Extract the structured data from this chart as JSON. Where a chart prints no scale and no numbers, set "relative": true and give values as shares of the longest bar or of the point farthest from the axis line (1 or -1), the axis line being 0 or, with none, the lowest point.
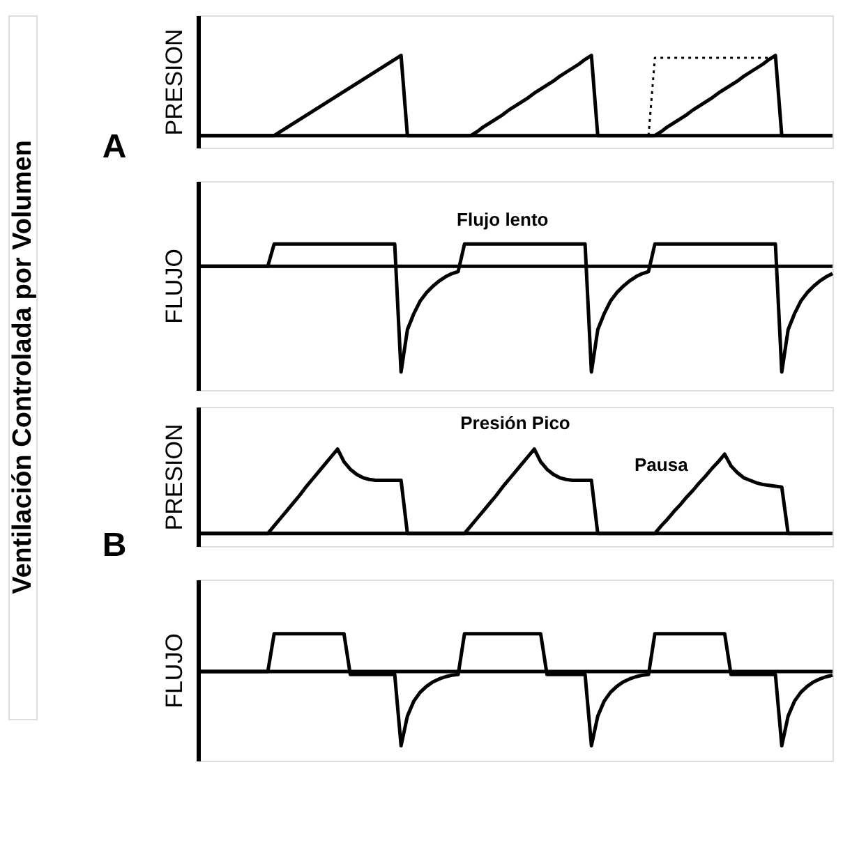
{
  "chart_data": [
    {
      "type": "other",
      "title": "Ventilación Controlada por Volumen"
    },
    {
      "type": "line",
      "ylabel": "PRESION",
      "annotations": [
        "A"
      ],
      "relative": true,
      "categories": [
        null,
        null,
        null,
        null,
        null,
        null,
        null,
        null,
        null,
        null,
        null,
        null,
        null,
        null,
        null,
        null,
        null,
        null,
        null,
        null,
        null,
        null,
        null,
        null,
        null,
        null,
        null,
        null,
        null,
        null,
        null,
        null,
        null,
        null,
        null,
        null,
        null,
        null,
        null,
        null,
        null,
        null,
        null,
        null,
        null,
        null,
        null,
        null,
        null,
        null,
        null,
        null,
        null,
        null,
        null,
        null,
        null,
        null,
        null,
        null,
        null,
        null,
        null,
        null,
        null,
        null,
        null,
        null,
        null,
        null,
        null,
        null,
        null,
        null,
        null,
        null,
        null,
        null,
        null,
        null,
        null,
        null,
        null,
        null,
        null,
        null,
        null,
        null,
        null,
        null,
        null,
        null,
        null,
        null,
        null,
        null,
        null,
        null,
        null,
        null,
        null
      ],
      "series": [
        {
          "color": "#000000",
          "values": [
            0,
            0,
            0,
            0,
            0,
            0,
            0,
            0,
            0,
            0,
            0,
            0,
            0,
            0.05,
            0.1,
            0.15,
            0.2,
            0.25,
            0.3,
            0.35,
            0.4,
            0.45,
            0.5,
            0.55,
            0.6,
            0.65,
            0.7,
            0.75,
            0.8,
            0.85,
            0.9,
            0.95,
            1,
            0,
            0,
            0,
            0,
            0,
            0,
            0,
            0,
            0,
            0,
            0,
            0.05,
            0.11,
            0.16,
            0.21,
            0.26,
            0.32,
            0.37,
            0.42,
            0.47,
            0.53,
            0.58,
            0.63,
            0.68,
            0.74,
            0.79,
            0.84,
            0.89,
            0.95,
            1,
            0,
            0,
            0,
            0,
            0,
            0,
            0,
            0,
            0,
            0,
            0.05,
            0.11,
            0.16,
            0.21,
            0.26,
            0.32,
            0.37,
            0.42,
            0.47,
            0.53,
            0.58,
            0.63,
            0.68,
            0.74,
            0.79,
            0.84,
            0.89,
            0.95,
            1,
            0,
            0,
            0,
            0,
            0,
            0,
            0,
            0,
            0
          ]
        },
        {
          "color": "#000000",
          "line_style": "dotted",
          "values": [
            null,
            null,
            null,
            null,
            null,
            null,
            null,
            null,
            null,
            null,
            null,
            null,
            null,
            null,
            null,
            null,
            null,
            null,
            null,
            null,
            null,
            null,
            null,
            null,
            null,
            null,
            null,
            null,
            null,
            null,
            null,
            null,
            null,
            null,
            null,
            null,
            null,
            null,
            null,
            null,
            null,
            null,
            null,
            null,
            null,
            null,
            null,
            null,
            null,
            null,
            null,
            null,
            null,
            null,
            null,
            null,
            null,
            null,
            null,
            null,
            null,
            null,
            null,
            null,
            null,
            null,
            null,
            null,
            null,
            null,
            null,
            0,
            0.97,
            0.97,
            0.97,
            0.97,
            0.97,
            0.97,
            0.97,
            0.97,
            0.97,
            0.97,
            0.97,
            0.97,
            0.97,
            0.97,
            0.97,
            0.97,
            0.97,
            0.97,
            0.97,
            0.97,
            null,
            null,
            null,
            null,
            null,
            null,
            null,
            null,
            null
          ]
        }
      ]
    },
    {
      "type": "line",
      "ylabel": "FLUJO",
      "annotations": [
        "Flujo lento"
      ],
      "relative": true,
      "categories": [
        null,
        null,
        null,
        null,
        null,
        null,
        null,
        null,
        null,
        null,
        null,
        null,
        null,
        null,
        null,
        null,
        null,
        null,
        null,
        null,
        null,
        null,
        null,
        null,
        null,
        null,
        null,
        null,
        null,
        null,
        null,
        null,
        null,
        null,
        null,
        null,
        null,
        null,
        null,
        null,
        null,
        null,
        null,
        null,
        null,
        null,
        null,
        null,
        null,
        null,
        null,
        null,
        null,
        null,
        null,
        null,
        null,
        null,
        null,
        null,
        null,
        null,
        null,
        null,
        null,
        null,
        null,
        null,
        null,
        null,
        null,
        null,
        null,
        null,
        null,
        null,
        null,
        null,
        null,
        null,
        null,
        null,
        null,
        null,
        null,
        null,
        null,
        null,
        null,
        null,
        null,
        null,
        null,
        null,
        null,
        null,
        null,
        null,
        null,
        null,
        null
      ],
      "series": [
        {
          "color": "#000000",
          "values": [
            0,
            0,
            0,
            0,
            0,
            0,
            0,
            0,
            0,
            0,
            0,
            0,
            0.21,
            0.21,
            0.21,
            0.21,
            0.21,
            0.21,
            0.21,
            0.21,
            0.21,
            0.21,
            0.21,
            0.21,
            0.21,
            0.21,
            0.21,
            0.21,
            0.21,
            0.21,
            0.21,
            0.21,
            -1,
            -0.6,
            -0.45,
            -0.33,
            -0.25,
            -0.19,
            -0.14,
            -0.1,
            -0.07,
            -0.05,
            0.21,
            0.21,
            0.21,
            0.21,
            0.21,
            0.21,
            0.21,
            0.21,
            0.21,
            0.21,
            0.21,
            0.21,
            0.21,
            0.21,
            0.21,
            0.21,
            0.21,
            0.21,
            0.21,
            0.21,
            -1,
            -0.6,
            -0.45,
            -0.33,
            -0.25,
            -0.19,
            -0.14,
            -0.1,
            -0.07,
            -0.05,
            0.21,
            0.21,
            0.21,
            0.21,
            0.21,
            0.21,
            0.21,
            0.21,
            0.21,
            0.21,
            0.21,
            0.21,
            0.21,
            0.21,
            0.21,
            0.21,
            0.21,
            0.21,
            0.21,
            0.21,
            -1,
            -0.6,
            -0.45,
            -0.33,
            -0.25,
            -0.19,
            -0.14,
            -0.1,
            -0.07
          ]
        }
      ]
    },
    {
      "type": "line",
      "ylabel": "PRESION",
      "annotations": [
        "B",
        "Presión Pico",
        "Pausa"
      ],
      "relative": true,
      "categories": [
        null,
        null,
        null,
        null,
        null,
        null,
        null,
        null,
        null,
        null,
        null,
        null,
        null,
        null,
        null,
        null,
        null,
        null,
        null,
        null,
        null,
        null,
        null,
        null,
        null,
        null,
        null,
        null,
        null,
        null,
        null,
        null,
        null,
        null,
        null,
        null,
        null,
        null,
        null,
        null,
        null,
        null,
        null,
        null,
        null,
        null,
        null,
        null,
        null,
        null,
        null,
        null,
        null,
        null,
        null,
        null,
        null,
        null,
        null,
        null,
        null,
        null,
        null,
        null,
        null,
        null,
        null,
        null,
        null,
        null,
        null,
        null,
        null,
        null,
        null,
        null,
        null,
        null,
        null,
        null,
        null,
        null,
        null,
        null,
        null,
        null,
        null,
        null,
        null,
        null,
        null,
        null,
        null,
        null,
        null,
        null,
        null,
        null,
        null,
        null,
        null
      ],
      "series": [
        {
          "color": "#000000",
          "values": [
            0,
            0,
            0,
            0,
            0,
            0,
            0,
            0,
            0,
            0,
            0,
            0,
            0.09,
            0.18,
            0.27,
            0.36,
            0.45,
            0.55,
            0.64,
            0.73,
            0.82,
            0.91,
            1,
            0.85,
            0.76,
            0.7,
            0.66,
            0.64,
            0.63,
            0.63,
            0.63,
            0.63,
            0.63,
            0,
            0,
            0,
            0,
            0,
            0,
            0,
            0,
            0,
            0,
            0.09,
            0.18,
            0.27,
            0.36,
            0.45,
            0.55,
            0.64,
            0.73,
            0.82,
            0.91,
            1,
            0.85,
            0.76,
            0.7,
            0.66,
            0.64,
            0.63,
            0.63,
            0.63,
            0.63,
            0,
            0,
            0,
            0,
            0,
            0,
            0,
            0,
            0,
            0,
            0.09,
            0.17,
            0.26,
            0.34,
            0.43,
            0.51,
            0.6,
            0.68,
            0.77,
            0.85,
            0.94,
            0.8,
            0.72,
            0.66,
            0.63,
            0.6,
            0.58,
            0.57,
            0.56,
            0.55,
            0,
            0,
            0,
            0,
            0,
            0,
            null,
            null
          ]
        }
      ]
    },
    {
      "type": "line",
      "ylabel": "FLUJO",
      "relative": true,
      "categories": [
        null,
        null,
        null,
        null,
        null,
        null,
        null,
        null,
        null,
        null,
        null,
        null,
        null,
        null,
        null,
        null,
        null,
        null,
        null,
        null,
        null,
        null,
        null,
        null,
        null,
        null,
        null,
        null,
        null,
        null,
        null,
        null,
        null,
        null,
        null,
        null,
        null,
        null,
        null,
        null,
        null,
        null,
        null,
        null,
        null,
        null,
        null,
        null,
        null,
        null,
        null,
        null,
        null,
        null,
        null,
        null,
        null,
        null,
        null,
        null,
        null,
        null,
        null,
        null,
        null,
        null,
        null,
        null,
        null,
        null,
        null,
        null,
        null,
        null,
        null,
        null,
        null,
        null,
        null,
        null,
        null,
        null,
        null,
        null,
        null,
        null,
        null,
        null,
        null,
        null,
        null,
        null,
        null,
        null,
        null,
        null,
        null,
        null,
        null,
        null,
        null
      ],
      "series": [
        {
          "color": "#000000",
          "values": [
            0,
            0,
            0,
            0,
            0,
            0,
            0,
            0,
            0,
            0,
            0,
            0,
            0.51,
            0.51,
            0.51,
            0.51,
            0.51,
            0.51,
            0.51,
            0.51,
            0.51,
            0.51,
            0.51,
            0.51,
            -0.04,
            -0.04,
            -0.04,
            -0.04,
            -0.04,
            -0.04,
            -0.04,
            -0.04,
            -1,
            -0.6,
            -0.4,
            -0.28,
            -0.2,
            -0.14,
            -0.1,
            -0.07,
            -0.05,
            -0.04,
            0.51,
            0.51,
            0.51,
            0.51,
            0.51,
            0.51,
            0.51,
            0.51,
            0.51,
            0.51,
            0.51,
            0.51,
            0.51,
            -0.04,
            -0.04,
            -0.04,
            -0.04,
            -0.04,
            -0.04,
            -0.04,
            -1,
            -0.6,
            -0.4,
            -0.28,
            -0.2,
            -0.14,
            -0.1,
            -0.07,
            -0.05,
            -0.04,
            0.51,
            0.51,
            0.51,
            0.51,
            0.51,
            0.51,
            0.51,
            0.51,
            0.51,
            0.51,
            0.51,
            0.51,
            -0.04,
            -0.04,
            -0.04,
            -0.04,
            -0.04,
            -0.04,
            -0.04,
            -0.04,
            -1,
            -0.6,
            -0.4,
            -0.28,
            -0.2,
            -0.14,
            -0.1,
            -0.07,
            -0.05
          ]
        }
      ]
    }
  ]
}
